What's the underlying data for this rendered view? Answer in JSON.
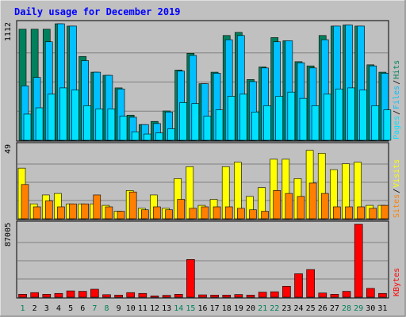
{
  "chart_data": {
    "type": "bar",
    "title": "Daily usage for December 2019",
    "categories": [
      "1",
      "2",
      "3",
      "4",
      "5",
      "6",
      "7",
      "8",
      "9",
      "10",
      "11",
      "12",
      "13",
      "14",
      "15",
      "16",
      "17",
      "18",
      "19",
      "20",
      "21",
      "22",
      "23",
      "24",
      "25",
      "26",
      "27",
      "28",
      "29",
      "30",
      "31"
    ],
    "weekend_days": [
      "1",
      "7",
      "8",
      "14",
      "15",
      "21",
      "22",
      "28",
      "29"
    ],
    "panels": [
      {
        "id": "top",
        "ylabel_max": "1112",
        "ylim": [
          0,
          1112
        ],
        "legend": [
          "Hits",
          "Files",
          "Pages"
        ],
        "series": [
          {
            "name": "Hits",
            "values": [
              1060,
              1060,
              1060,
              1112,
              1090,
              800,
              650,
              620,
              500,
              240,
              150,
              180,
              280,
              670,
              830,
              540,
              650,
              1000,
              1030,
              580,
              700,
              980,
              950,
              750,
              710,
              1000,
              1090,
              1100,
              1090,
              720,
              650
            ]
          },
          {
            "name": "Files",
            "values": [
              520,
              600,
              940,
              1112,
              1090,
              760,
              650,
              620,
              490,
              220,
              150,
              160,
              270,
              660,
              810,
              540,
              640,
              960,
              1000,
              560,
              690,
              940,
              950,
              740,
              690,
              960,
              1090,
              1100,
              1090,
              710,
              640
            ]
          },
          {
            "name": "Pages",
            "values": [
              250,
              310,
              440,
              500,
              480,
              330,
              300,
              300,
              230,
              80,
              60,
              70,
              110,
              360,
              350,
              230,
              290,
              420,
              440,
              270,
              330,
              420,
              460,
              400,
              330,
              440,
              490,
              500,
              480,
              330,
              290
            ]
          }
        ]
      },
      {
        "id": "middle",
        "ylabel_max": "49",
        "ylim": [
          0,
          49
        ],
        "legend": [
          "Visits",
          "Sites"
        ],
        "series": [
          {
            "name": "Visits",
            "values": [
              34,
              10,
              16,
              17,
              10,
              10,
              10,
              9,
              5,
              19,
              7,
              16,
              7,
              27,
              35,
              9,
              13,
              35,
              38,
              15,
              21,
              40,
              40,
              27,
              46,
              44,
              33,
              37,
              38,
              9,
              9
            ]
          },
          {
            "name": "Sites",
            "values": [
              23,
              8,
              12,
              8,
              10,
              10,
              16,
              8,
              5,
              18,
              6,
              8,
              6,
              13,
              7,
              8,
              8,
              8,
              7,
              6,
              5,
              19,
              17,
              15,
              24,
              17,
              8,
              8,
              8,
              7,
              9
            ]
          }
        ]
      },
      {
        "id": "bottom",
        "ylabel_max": "87005",
        "ylim": [
          0,
          87005
        ],
        "legend": [
          "KBytes"
        ],
        "series": [
          {
            "name": "KBytes",
            "values": [
              3500,
              5500,
              3500,
              4500,
              7500,
              7000,
              9500,
              3000,
              2500,
              5500,
              4500,
              1500,
              2200,
              3500,
              45000,
              2800,
              2500,
              2500,
              3200,
              2500,
              6000,
              6500,
              13000,
              28000,
              33000,
              5000,
              3500,
              7000,
              87005,
              10500,
              4500
            ]
          }
        ]
      }
    ],
    "colors": {
      "Hits": "#00805c",
      "Files": "#00c0ff",
      "Pages": "#00e0ff",
      "Visits": "#ffff00",
      "Sites": "#ff8000",
      "KBytes": "#ff0000",
      "title": "#0000ff",
      "weekend_label": "#00805c",
      "weekday_label": "#000000",
      "background": "#c0c0c0",
      "panel_border": "#000000",
      "legend_separator": "#000000"
    }
  }
}
